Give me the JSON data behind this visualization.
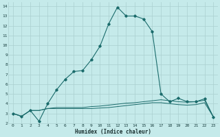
{
  "xlabel": "Humidex (Indice chaleur)",
  "ylabel": "",
  "bg_color": "#c5eaea",
  "grid_color": "#aacfcf",
  "line_color": "#1a6b6b",
  "xlim": [
    -0.5,
    23.5
  ],
  "ylim": [
    2,
    14.4
  ],
  "xticks": [
    0,
    1,
    2,
    3,
    4,
    5,
    6,
    7,
    8,
    9,
    10,
    11,
    12,
    13,
    14,
    15,
    16,
    17,
    18,
    19,
    20,
    21,
    22,
    23
  ],
  "yticks": [
    2,
    3,
    4,
    5,
    6,
    7,
    8,
    9,
    10,
    11,
    12,
    13,
    14
  ],
  "series1_x": [
    0,
    1,
    2,
    3,
    4,
    5,
    6,
    7,
    8,
    9,
    10,
    11,
    12,
    13,
    14,
    15,
    16,
    17,
    18,
    19,
    20,
    21,
    22,
    23
  ],
  "series1_y": [
    3.0,
    2.7,
    3.3,
    2.2,
    4.0,
    5.4,
    6.5,
    7.3,
    7.4,
    8.5,
    9.9,
    12.2,
    13.9,
    13.0,
    13.0,
    12.7,
    11.4,
    5.0,
    4.2,
    4.55,
    4.2,
    4.2,
    4.5,
    2.65
  ],
  "series2_x": [
    0,
    1,
    2,
    3,
    4,
    5,
    6,
    7,
    8,
    9,
    10,
    11,
    12,
    13,
    14,
    15,
    16,
    17,
    18,
    19,
    20,
    21,
    22,
    23
  ],
  "series2_y": [
    3.0,
    2.7,
    3.3,
    3.3,
    3.5,
    3.6,
    3.6,
    3.6,
    3.6,
    3.7,
    3.75,
    3.85,
    3.95,
    4.05,
    4.1,
    4.2,
    4.3,
    4.4,
    4.3,
    4.2,
    4.15,
    4.2,
    4.35,
    2.65
  ],
  "series3_x": [
    0,
    1,
    2,
    3,
    4,
    5,
    6,
    7,
    8,
    9,
    10,
    11,
    12,
    13,
    14,
    15,
    16,
    17,
    18,
    19,
    20,
    21,
    22,
    23
  ],
  "series3_y": [
    3.0,
    2.7,
    3.3,
    3.3,
    3.5,
    3.5,
    3.5,
    3.5,
    3.5,
    3.5,
    3.55,
    3.6,
    3.7,
    3.8,
    3.9,
    4.0,
    4.1,
    4.1,
    4.0,
    3.9,
    3.85,
    3.9,
    4.1,
    2.65
  ]
}
